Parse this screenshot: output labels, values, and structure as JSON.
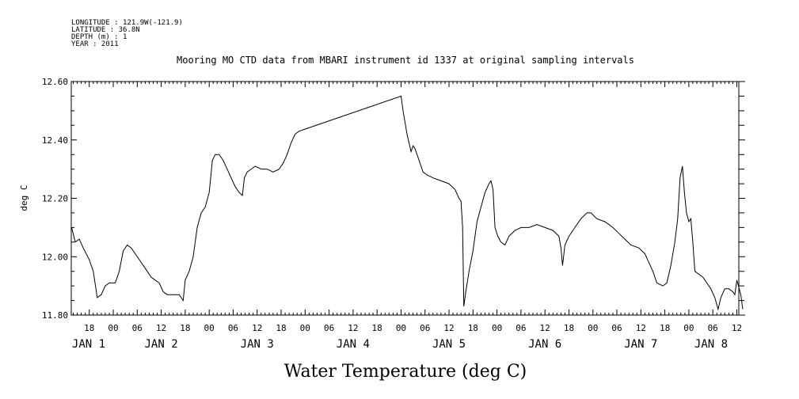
{
  "header": {
    "meta_lines": [
      "LONGITUDE : 121.9W(-121.9)",
      "LATITUDE : 36.8N",
      "DEPTH (m) : 1",
      "YEAR : 2011"
    ],
    "title": "Mooring MO CTD data from MBARI instrument id 1337 at original sampling intervals",
    "bottom_title": "Water Temperature (deg C)"
  },
  "chart_data": {
    "type": "line",
    "title": "Mooring MO CTD data from MBARI instrument id 1337 at original sampling intervals",
    "xlabel": "",
    "ylabel": "deg C",
    "ylim": [
      11.8,
      12.6
    ],
    "xlim_hours": [
      13.5,
      180.5
    ],
    "y_ticks": [
      "11.80",
      "12.00",
      "12.20",
      "12.40",
      "12.60"
    ],
    "x_hour_labels": [
      {
        "h": 18,
        "label": "18"
      },
      {
        "h": 24,
        "label": "00"
      },
      {
        "h": 30,
        "label": "06"
      },
      {
        "h": 36,
        "label": "12"
      },
      {
        "h": 42,
        "label": "18"
      },
      {
        "h": 48,
        "label": "00"
      },
      {
        "h": 54,
        "label": "06"
      },
      {
        "h": 60,
        "label": "12"
      },
      {
        "h": 66,
        "label": "18"
      },
      {
        "h": 72,
        "label": "00"
      },
      {
        "h": 78,
        "label": "06"
      },
      {
        "h": 84,
        "label": "12"
      },
      {
        "h": 90,
        "label": "18"
      },
      {
        "h": 96,
        "label": "00"
      },
      {
        "h": 102,
        "label": "06"
      },
      {
        "h": 108,
        "label": "12"
      },
      {
        "h": 114,
        "label": "18"
      },
      {
        "h": 120,
        "label": "00"
      },
      {
        "h": 126,
        "label": "06"
      },
      {
        "h": 132,
        "label": "12"
      },
      {
        "h": 138,
        "label": "18"
      },
      {
        "h": 144,
        "label": "00"
      },
      {
        "h": 150,
        "label": "06"
      },
      {
        "h": 156,
        "label": "12"
      },
      {
        "h": 162,
        "label": "18"
      },
      {
        "h": 168,
        "label": "00"
      },
      {
        "h": 174,
        "label": "06"
      },
      {
        "h": 180,
        "label": "12"
      }
    ],
    "x_day_labels": [
      {
        "h": 24,
        "label": "JAN  1"
      },
      {
        "h": 48,
        "label": "JAN  2"
      },
      {
        "h": 72,
        "label": "JAN  3"
      },
      {
        "h": 96,
        "label": "JAN  4"
      },
      {
        "h": 120,
        "label": "JAN  5"
      },
      {
        "h": 144,
        "label": "JAN  6"
      },
      {
        "h": 168,
        "label": "JAN  7"
      },
      {
        "h": 192,
        "label": "JAN  8"
      }
    ],
    "series": [
      {
        "points": [
          [
            13.6,
            12.1
          ],
          [
            14.5,
            12.05
          ],
          [
            15.5,
            12.06
          ],
          [
            16.5,
            12.03
          ],
          [
            18,
            11.99
          ],
          [
            19,
            11.95
          ],
          [
            20,
            11.86
          ],
          [
            21,
            11.87
          ],
          [
            22,
            11.9
          ],
          [
            23,
            11.91
          ],
          [
            24.5,
            11.91
          ],
          [
            25.5,
            11.95
          ],
          [
            26.5,
            12.02
          ],
          [
            27.5,
            12.04
          ],
          [
            28.5,
            12.03
          ],
          [
            29.5,
            12.01
          ],
          [
            30.5,
            11.99
          ],
          [
            31.5,
            11.97
          ],
          [
            32.5,
            11.95
          ],
          [
            33.5,
            11.93
          ],
          [
            34.5,
            11.92
          ],
          [
            35.5,
            11.91
          ],
          [
            36.5,
            11.88
          ],
          [
            37.5,
            11.87
          ],
          [
            38.5,
            11.87
          ],
          [
            39.5,
            11.87
          ],
          [
            40.5,
            11.87
          ],
          [
            41.5,
            11.85
          ],
          [
            42,
            11.92
          ],
          [
            43,
            11.95
          ],
          [
            44,
            12.0
          ],
          [
            45,
            12.1
          ],
          [
            46,
            12.15
          ],
          [
            47,
            12.17
          ],
          [
            48,
            12.22
          ],
          [
            48.8,
            12.33
          ],
          [
            49.5,
            12.35
          ],
          [
            50.5,
            12.35
          ],
          [
            51.5,
            12.33
          ],
          [
            52.5,
            12.3
          ],
          [
            53.5,
            12.27
          ],
          [
            54.5,
            12.24
          ],
          [
            55.5,
            12.22
          ],
          [
            56.3,
            12.21
          ],
          [
            56.8,
            12.27
          ],
          [
            57.5,
            12.29
          ],
          [
            58.5,
            12.3
          ],
          [
            59.5,
            12.31
          ],
          [
            61,
            12.3
          ],
          [
            62.5,
            12.3
          ],
          [
            64,
            12.29
          ],
          [
            65.5,
            12.3
          ],
          [
            66.5,
            12.32
          ],
          [
            67.5,
            12.35
          ],
          [
            68.5,
            12.39
          ],
          [
            69.5,
            12.42
          ],
          [
            70.5,
            12.43
          ],
          [
            96,
            12.55
          ],
          [
            96.5,
            12.5
          ],
          [
            97.5,
            12.42
          ],
          [
            98.5,
            12.36
          ],
          [
            99,
            12.38
          ],
          [
            99.5,
            12.37
          ],
          [
            100.5,
            12.33
          ],
          [
            101.5,
            12.29
          ],
          [
            102.5,
            12.28
          ],
          [
            104,
            12.27
          ],
          [
            106,
            12.26
          ],
          [
            108,
            12.25
          ],
          [
            109.5,
            12.23
          ],
          [
            110.5,
            12.2
          ],
          [
            111,
            12.19
          ],
          [
            111.4,
            12.1
          ],
          [
            111.7,
            11.83
          ],
          [
            112.2,
            11.88
          ],
          [
            113,
            11.95
          ],
          [
            114,
            12.02
          ],
          [
            115,
            12.12
          ],
          [
            116,
            12.17
          ],
          [
            117,
            12.22
          ],
          [
            118,
            12.25
          ],
          [
            118.5,
            12.26
          ],
          [
            119,
            12.23
          ],
          [
            119.5,
            12.1
          ],
          [
            120.2,
            12.07
          ],
          [
            121,
            12.05
          ],
          [
            122,
            12.04
          ],
          [
            123,
            12.07
          ],
          [
            124.5,
            12.09
          ],
          [
            126,
            12.1
          ],
          [
            128,
            12.1
          ],
          [
            130,
            12.11
          ],
          [
            132,
            12.1
          ],
          [
            134,
            12.09
          ],
          [
            135.5,
            12.07
          ],
          [
            136,
            12.03
          ],
          [
            136.4,
            11.97
          ],
          [
            137,
            12.04
          ],
          [
            138,
            12.07
          ],
          [
            139.5,
            12.1
          ],
          [
            141,
            12.13
          ],
          [
            142.5,
            12.15
          ],
          [
            143.5,
            12.15
          ],
          [
            145,
            12.13
          ],
          [
            147,
            12.12
          ],
          [
            149,
            12.1
          ],
          [
            150.5,
            12.08
          ],
          [
            152,
            12.06
          ],
          [
            153.5,
            12.04
          ],
          [
            155.5,
            12.03
          ],
          [
            157,
            12.01
          ],
          [
            158,
            11.98
          ],
          [
            159,
            11.95
          ],
          [
            160,
            11.91
          ],
          [
            161.5,
            11.9
          ],
          [
            162.5,
            11.91
          ],
          [
            163.5,
            11.97
          ],
          [
            164.5,
            12.05
          ],
          [
            165.2,
            12.13
          ],
          [
            165.8,
            12.27
          ],
          [
            166.4,
            12.31
          ],
          [
            166.9,
            12.22
          ],
          [
            167.4,
            12.15
          ],
          [
            168,
            12.12
          ],
          [
            168.5,
            12.13
          ],
          [
            169,
            12.05
          ],
          [
            169.5,
            11.95
          ],
          [
            170.5,
            11.94
          ],
          [
            171.5,
            11.93
          ],
          [
            172.5,
            11.91
          ],
          [
            173.5,
            11.89
          ],
          [
            174.5,
            11.86
          ],
          [
            175.3,
            11.82
          ],
          [
            176,
            11.86
          ],
          [
            177,
            11.89
          ],
          [
            178,
            11.89
          ],
          [
            179,
            11.88
          ],
          [
            179.5,
            11.87
          ],
          [
            180,
            11.92
          ],
          [
            180.4,
            11.9
          ],
          [
            181,
            11.87
          ],
          [
            181.5,
            11.82
          ]
        ]
      }
    ]
  }
}
